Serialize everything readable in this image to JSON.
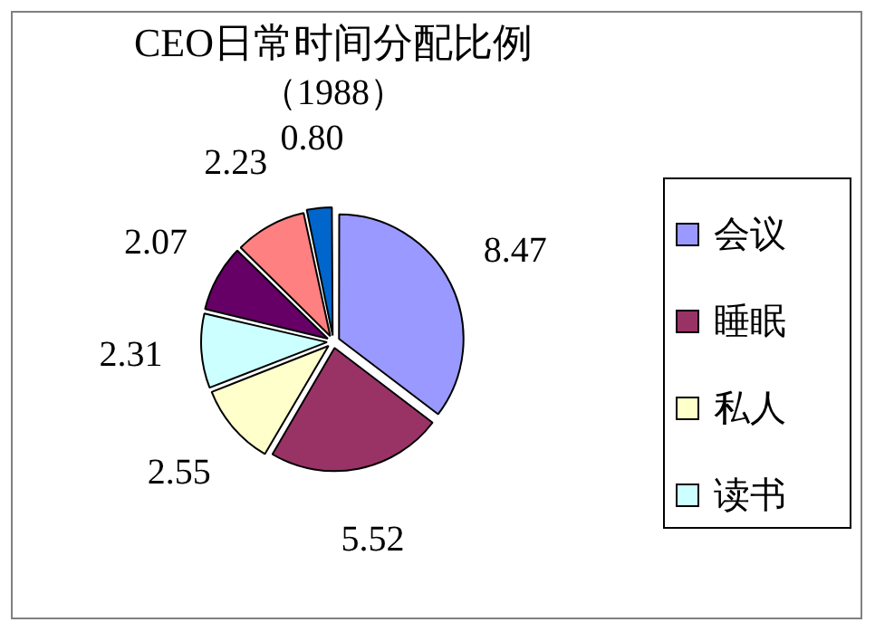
{
  "chart_data": {
    "type": "pie",
    "title": "CEO日常时间分配比例",
    "subtitle": "（1988）",
    "categories": [
      "会议",
      "睡眠",
      "私人",
      "读书",
      null,
      null,
      null
    ],
    "values": [
      8.47,
      5.52,
      2.55,
      2.31,
      2.07,
      2.23,
      0.8
    ],
    "value_labels": [
      "8.47",
      "5.52",
      "2.55",
      "2.31",
      "2.07",
      "2.23",
      "0.80"
    ],
    "colors": [
      "#9999ff",
      "#993366",
      "#ffffcc",
      "#ccffff",
      "#660066",
      "#ff8080",
      "#0066cc"
    ],
    "legend": "right"
  }
}
